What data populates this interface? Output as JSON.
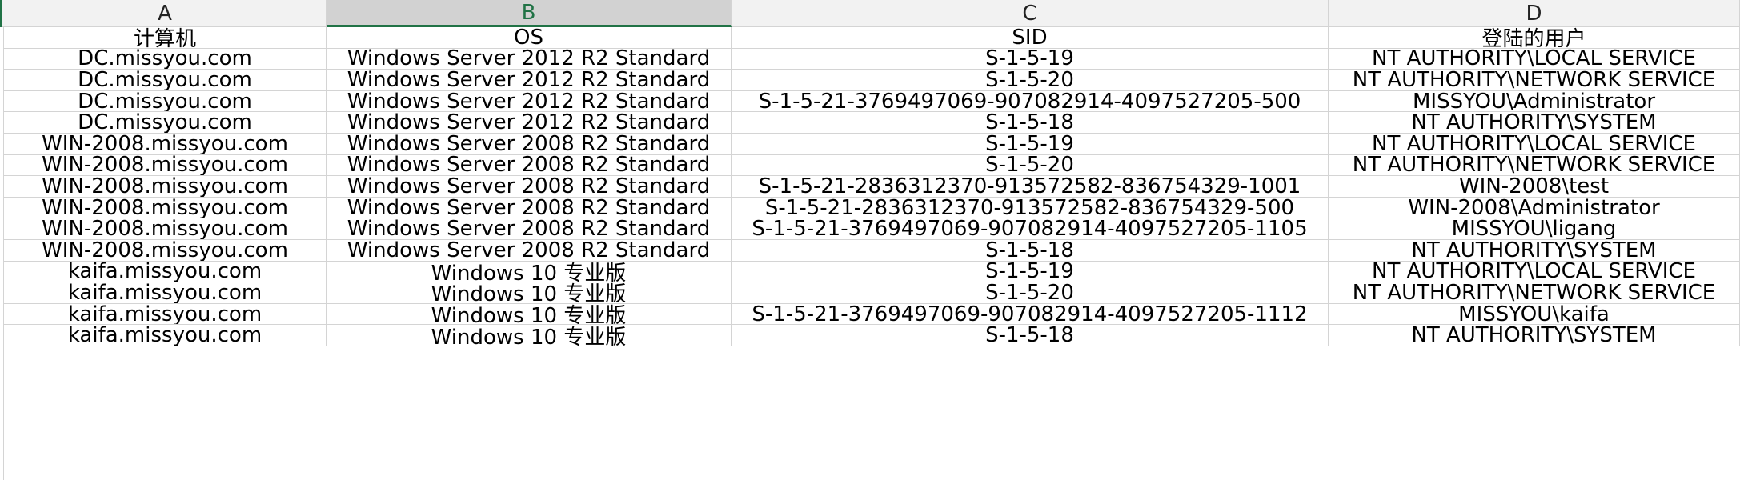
{
  "columns": [
    "A",
    "B",
    "C",
    "D"
  ],
  "selected_column": "B",
  "colors": {
    "accent": "#217346",
    "header_bg": "#f2f2f2",
    "selected_header_bg": "#d2d2d2",
    "gridline": "#d4d4d4"
  },
  "rows": [
    [
      "计算机",
      "OS",
      "SID",
      "登陆的用户"
    ],
    [
      "DC.missyou.com",
      "Windows Server 2012 R2 Standard",
      "S-1-5-19",
      "NT AUTHORITY\\LOCAL SERVICE"
    ],
    [
      "DC.missyou.com",
      "Windows Server 2012 R2 Standard",
      "S-1-5-20",
      "NT AUTHORITY\\NETWORK SERVICE"
    ],
    [
      "DC.missyou.com",
      "Windows Server 2012 R2 Standard",
      "S-1-5-21-3769497069-907082914-4097527205-500",
      "MISSYOU\\Administrator"
    ],
    [
      "DC.missyou.com",
      "Windows Server 2012 R2 Standard",
      "S-1-5-18",
      "NT AUTHORITY\\SYSTEM"
    ],
    [
      "WIN-2008.missyou.com",
      "Windows Server 2008 R2 Standard",
      "S-1-5-19",
      "NT AUTHORITY\\LOCAL SERVICE"
    ],
    [
      "WIN-2008.missyou.com",
      "Windows Server 2008 R2 Standard",
      "S-1-5-20",
      "NT AUTHORITY\\NETWORK SERVICE"
    ],
    [
      "WIN-2008.missyou.com",
      "Windows Server 2008 R2 Standard",
      "S-1-5-21-2836312370-913572582-836754329-1001",
      "WIN-2008\\test"
    ],
    [
      "WIN-2008.missyou.com",
      "Windows Server 2008 R2 Standard",
      "S-1-5-21-2836312370-913572582-836754329-500",
      "WIN-2008\\Administrator"
    ],
    [
      "WIN-2008.missyou.com",
      "Windows Server 2008 R2 Standard",
      "S-1-5-21-3769497069-907082914-4097527205-1105",
      "MISSYOU\\ligang"
    ],
    [
      "WIN-2008.missyou.com",
      "Windows Server 2008 R2 Standard",
      "S-1-5-18",
      "NT AUTHORITY\\SYSTEM"
    ],
    [
      "kaifa.missyou.com",
      "Windows 10 专业版",
      "S-1-5-19",
      "NT AUTHORITY\\LOCAL SERVICE"
    ],
    [
      "kaifa.missyou.com",
      "Windows 10 专业版",
      "S-1-5-20",
      "NT AUTHORITY\\NETWORK SERVICE"
    ],
    [
      "kaifa.missyou.com",
      "Windows 10 专业版",
      "S-1-5-21-3769497069-907082914-4097527205-1112",
      "MISSYOU\\kaifa"
    ],
    [
      "kaifa.missyou.com",
      "Windows 10 专业版",
      "S-1-5-18",
      "NT AUTHORITY\\SYSTEM"
    ]
  ]
}
